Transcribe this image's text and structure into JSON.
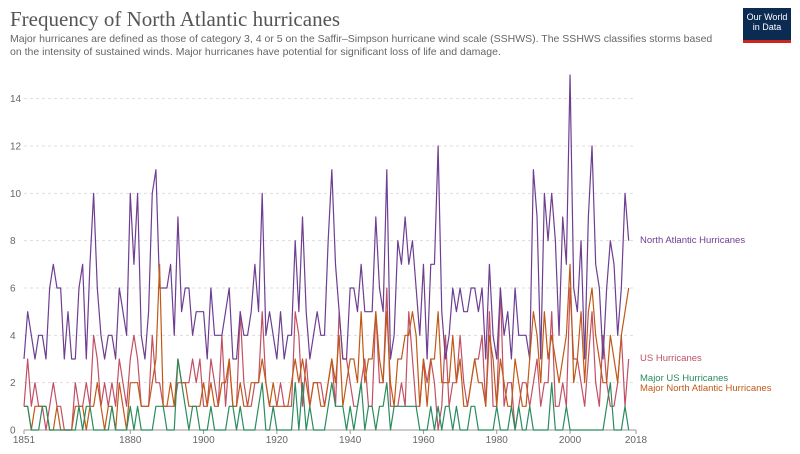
{
  "header": {
    "title": "Frequency of North Atlantic hurricanes",
    "subtitle": "Major hurricanes are defined as those of category 3, 4 or 5 on the Saffir–Simpson hurricane wind scale (SSHWS). The SSHWS classifies storms based on the intensity of sustained winds. Major hurricanes have potential for significant loss of life and damage.",
    "logo_line1": "Our World",
    "logo_line2": "in Data"
  },
  "colors": {
    "north_atlantic": "#6d3e91",
    "us": "#c15065",
    "major_us": "#2a8b5e",
    "major_na": "#c05917"
  },
  "chart_data": {
    "type": "line",
    "title": "Frequency of North Atlantic hurricanes",
    "xlabel": "",
    "ylabel": "",
    "xlim": [
      1851,
      2018
    ],
    "ylim": [
      0,
      15
    ],
    "x_ticks": [
      "1851",
      "1880",
      "1900",
      "1920",
      "1940",
      "1960",
      "1980",
      "2000",
      "2018"
    ],
    "y_ticks": [
      "0",
      "2",
      "4",
      "6",
      "8",
      "10",
      "12",
      "14"
    ],
    "grid": true,
    "legend": "line-end labels, right",
    "x_start": 1851,
    "series": [
      {
        "name": "North Atlantic Hurricanes",
        "color": "#6d3e91",
        "values": [
          3,
          5,
          4,
          3,
          4,
          4,
          3,
          6,
          7,
          6,
          6,
          3,
          5,
          3,
          3,
          6,
          7,
          3,
          7,
          10,
          6,
          4,
          3,
          4,
          4,
          3,
          6,
          5,
          4,
          10,
          7,
          10,
          4,
          3,
          5,
          10,
          11,
          6,
          6,
          6,
          7,
          4,
          9,
          5,
          6,
          6,
          4,
          5,
          5,
          5,
          3,
          6,
          4,
          4,
          4,
          5,
          6,
          3,
          3,
          5,
          4,
          4,
          5,
          7,
          5,
          10,
          4,
          5,
          4,
          3,
          5,
          3,
          4,
          4,
          8,
          5,
          9,
          5,
          3,
          4,
          5,
          4,
          4,
          8,
          11,
          7,
          5,
          3,
          3,
          6,
          6,
          5,
          7,
          5,
          5,
          5,
          9,
          6,
          5,
          11,
          3,
          4,
          8,
          7,
          9,
          7,
          8,
          6,
          4,
          7,
          3,
          7,
          7,
          12,
          5,
          3,
          4,
          6,
          5,
          6,
          5,
          5,
          6,
          6,
          5,
          6,
          3,
          7,
          4,
          3,
          6,
          4,
          5,
          3,
          6,
          4,
          4,
          4,
          3,
          11,
          9,
          3,
          10,
          8,
          10,
          8,
          4,
          9,
          7,
          15,
          6,
          5,
          8,
          3,
          9,
          12,
          7,
          6,
          3,
          6,
          8,
          7,
          4,
          6,
          10,
          8
        ]
      },
      {
        "name": "US Hurricanes",
        "color": "#c15065",
        "values": [
          1,
          3,
          1,
          2,
          1,
          1,
          0,
          1,
          2,
          1,
          1,
          0,
          0,
          0,
          2,
          1,
          1,
          2,
          1,
          4,
          3,
          1,
          2,
          1,
          2,
          1,
          3,
          2,
          1,
          3,
          4,
          3,
          1,
          1,
          1,
          4,
          2,
          2,
          1,
          1,
          1,
          1,
          2,
          2,
          2,
          2,
          3,
          2,
          3,
          1,
          1,
          3,
          2,
          1,
          4,
          1,
          3,
          1,
          1,
          5,
          2,
          1,
          1,
          2,
          2,
          5,
          2,
          1,
          1,
          1,
          2,
          1,
          1,
          1,
          5,
          4,
          1,
          3,
          1,
          2,
          2,
          2,
          1,
          2,
          3,
          1,
          5,
          3,
          3,
          2,
          1,
          1,
          2,
          3,
          1,
          1,
          5,
          2,
          2,
          6,
          1,
          1,
          1,
          2,
          1,
          5,
          3,
          1,
          1,
          3,
          2,
          3,
          2,
          0,
          1,
          4,
          1,
          2,
          2,
          4,
          2,
          1,
          2,
          3,
          3,
          4,
          1,
          5,
          1,
          1,
          6,
          1,
          2,
          2,
          0,
          1,
          2,
          2,
          1,
          2,
          3,
          1,
          2,
          2,
          5,
          1,
          1,
          2,
          1,
          6,
          3,
          3,
          2,
          1,
          3,
          5,
          2,
          1,
          4,
          2,
          1,
          1,
          2,
          4,
          1,
          3
        ]
      },
      {
        "name": "Major US Hurricanes",
        "color": "#2a8b5e",
        "values": [
          1,
          1,
          0,
          0,
          0,
          1,
          1,
          0,
          0,
          0,
          0,
          0,
          0,
          0,
          0,
          1,
          0,
          1,
          1,
          0,
          0,
          0,
          0,
          0,
          1,
          0,
          0,
          0,
          0,
          1,
          0,
          1,
          0,
          0,
          0,
          0,
          1,
          1,
          1,
          0,
          0,
          0,
          3,
          2,
          1,
          0,
          1,
          1,
          0,
          0,
          0,
          1,
          0,
          0,
          0,
          0,
          1,
          1,
          0,
          1,
          0,
          0,
          0,
          0,
          1,
          2,
          0,
          0,
          1,
          0,
          0,
          0,
          0,
          0,
          2,
          0,
          2,
          0,
          1,
          0,
          0,
          0,
          0,
          1,
          2,
          1,
          1,
          1,
          0,
          1,
          0,
          1,
          2,
          0,
          1,
          1,
          0,
          1,
          1,
          2,
          0,
          1,
          1,
          1,
          1,
          1,
          1,
          1,
          0,
          0,
          0,
          1,
          0,
          1,
          0,
          1,
          1,
          0,
          1,
          0,
          0,
          0,
          1,
          1,
          0,
          0,
          0,
          0,
          0,
          1,
          0,
          0,
          0,
          1,
          0,
          1,
          0,
          0,
          1,
          0,
          0,
          0,
          0,
          0,
          2,
          0,
          0,
          0,
          1,
          0,
          0,
          0,
          0,
          0,
          0,
          0,
          0,
          0,
          0,
          1,
          2,
          0,
          0,
          0,
          1,
          0
        ]
      },
      {
        "name": "Major North Atlantic Hurricanes",
        "color": "#c05917",
        "values": [
          1,
          1,
          0,
          1,
          1,
          1,
          1,
          0,
          0,
          1,
          0,
          0,
          0,
          0,
          1,
          1,
          1,
          0,
          1,
          1,
          2,
          1,
          0,
          1,
          1,
          0,
          2,
          1,
          0,
          2,
          2,
          2,
          1,
          1,
          1,
          2,
          3,
          7,
          1,
          1,
          2,
          1,
          3,
          2,
          2,
          1,
          1,
          1,
          1,
          2,
          1,
          2,
          1,
          1,
          2,
          2,
          3,
          1,
          1,
          2,
          1,
          1,
          2,
          2,
          2,
          3,
          2,
          1,
          2,
          1,
          1,
          1,
          1,
          2,
          3,
          2,
          3,
          2,
          1,
          2,
          2,
          1,
          1,
          2,
          3,
          2,
          4,
          1,
          2,
          3,
          3,
          2,
          5,
          2,
          3,
          3,
          5,
          3,
          2,
          5,
          2,
          1,
          3,
          3,
          4,
          4,
          5,
          4,
          1,
          3,
          1,
          3,
          3,
          5,
          2,
          2,
          2,
          4,
          2,
          3,
          1,
          1,
          2,
          3,
          2,
          2,
          1,
          4,
          3,
          1,
          3,
          2,
          1,
          1,
          3,
          2,
          1,
          1,
          3,
          5,
          4,
          2,
          5,
          3,
          4,
          3,
          2,
          3,
          4,
          7,
          2,
          3,
          5,
          2,
          5,
          6,
          4,
          3,
          2,
          2,
          4,
          3,
          2,
          4,
          5,
          6
        ]
      }
    ]
  }
}
